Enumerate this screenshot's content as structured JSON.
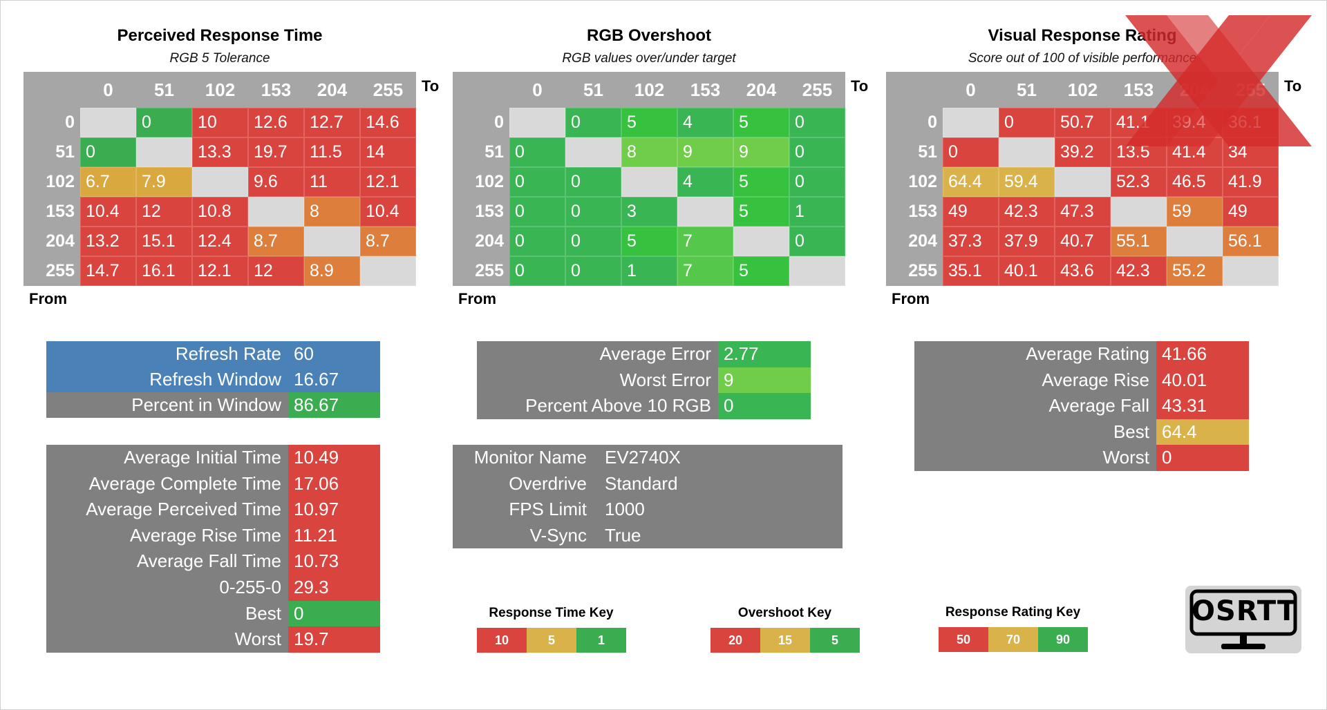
{
  "colors": {
    "red": "#d9443e",
    "orange": "#dd7e3c",
    "yellow": "#d9b24a",
    "green_dark": "#3aad51",
    "green_mid": "#44c452",
    "green_bright": "#36c23f",
    "green_light": "#6fcd4a",
    "gray_cell": "#d9d9d9",
    "panel_gray": "#808080",
    "refresh_blue": "#4a82b8",
    "grid_bg": "#a6a6a6"
  },
  "axes": {
    "to": "To",
    "from": "From"
  },
  "chart_data": [
    {
      "type": "heatmap",
      "title": "Perceived Response Time",
      "subtitle": "RGB 5 Tolerance",
      "columns": [
        "0",
        "51",
        "102",
        "153",
        "204",
        "255"
      ],
      "rows": [
        "0",
        "51",
        "102",
        "153",
        "204",
        "255"
      ],
      "values": [
        [
          "",
          "0",
          "10",
          "12.6",
          "12.7",
          "14.6"
        ],
        [
          "0",
          "",
          "13.3",
          "19.7",
          "11.5",
          "14"
        ],
        [
          "6.7",
          "7.9",
          "",
          "9.6",
          "11",
          "12.1"
        ],
        [
          "10.4",
          "12",
          "10.8",
          "",
          "8",
          "10.4"
        ],
        [
          "13.2",
          "15.1",
          "12.4",
          "8.7",
          "",
          "8.7"
        ],
        [
          "14.7",
          "16.1",
          "12.1",
          "12",
          "8.9",
          ""
        ]
      ],
      "colors": [
        [
          "#d9d9d9",
          "#3aad51",
          "#d9443e",
          "#d9443e",
          "#d9443e",
          "#d9443e"
        ],
        [
          "#3aad51",
          "#d9d9d9",
          "#d9443e",
          "#d9443e",
          "#d9443e",
          "#d9443e"
        ],
        [
          "#d9a83e",
          "#d9a83e",
          "#d9d9d9",
          "#d9443e",
          "#d9443e",
          "#d9443e"
        ],
        [
          "#d9443e",
          "#d9443e",
          "#d9443e",
          "#d9d9d9",
          "#dd7e3c",
          "#d9443e"
        ],
        [
          "#d9443e",
          "#d9443e",
          "#d9443e",
          "#dd7e3c",
          "#d9d9d9",
          "#dd7e3c"
        ],
        [
          "#d9443e",
          "#d9443e",
          "#d9443e",
          "#d9443e",
          "#dd7e3c",
          "#d9d9d9"
        ]
      ]
    },
    {
      "type": "heatmap",
      "title": "RGB Overshoot",
      "subtitle": "RGB values over/under target",
      "columns": [
        "0",
        "51",
        "102",
        "153",
        "204",
        "255"
      ],
      "rows": [
        "0",
        "51",
        "102",
        "153",
        "204",
        "255"
      ],
      "values": [
        [
          "",
          "0",
          "5",
          "4",
          "5",
          "0"
        ],
        [
          "0",
          "",
          "8",
          "9",
          "9",
          "0"
        ],
        [
          "0",
          "0",
          "",
          "4",
          "5",
          "0"
        ],
        [
          "0",
          "0",
          "3",
          "",
          "5",
          "1"
        ],
        [
          "0",
          "0",
          "5",
          "7",
          "",
          "0"
        ],
        [
          "0",
          "0",
          "1",
          "7",
          "5",
          ""
        ]
      ],
      "colors": [
        [
          "#d9d9d9",
          "#3ab553",
          "#36c23f",
          "#3ab553",
          "#36c23f",
          "#3ab553"
        ],
        [
          "#3ab553",
          "#d9d9d9",
          "#6fcd4a",
          "#6fcd4a",
          "#6fcd4a",
          "#3ab553"
        ],
        [
          "#3ab553",
          "#3ab553",
          "#d9d9d9",
          "#3ab553",
          "#36c23f",
          "#3ab553"
        ],
        [
          "#3ab553",
          "#3ab553",
          "#3ab553",
          "#d9d9d9",
          "#36c23f",
          "#3ab553"
        ],
        [
          "#3ab553",
          "#3ab553",
          "#36c23f",
          "#55c84b",
          "#d9d9d9",
          "#3ab553"
        ],
        [
          "#3ab553",
          "#3ab553",
          "#3ab553",
          "#55c84b",
          "#36c23f",
          "#d9d9d9"
        ]
      ]
    },
    {
      "type": "heatmap",
      "title": "Visual Response Rating",
      "subtitle": "Score out of 100 of visible performance",
      "columns": [
        "0",
        "51",
        "102",
        "153",
        "204",
        "255"
      ],
      "rows": [
        "0",
        "51",
        "102",
        "153",
        "204",
        "255"
      ],
      "values": [
        [
          "",
          "0",
          "50.7",
          "41.1",
          "39.4",
          "36.1"
        ],
        [
          "0",
          "",
          "39.2",
          "13.5",
          "41.4",
          "34"
        ],
        [
          "64.4",
          "59.4",
          "",
          "52.3",
          "46.5",
          "41.9"
        ],
        [
          "49",
          "42.3",
          "47.3",
          "",
          "59",
          "49"
        ],
        [
          "37.3",
          "37.9",
          "40.7",
          "55.1",
          "",
          "56.1"
        ],
        [
          "35.1",
          "40.1",
          "43.6",
          "42.3",
          "55.2",
          ""
        ]
      ],
      "colors": [
        [
          "#d9d9d9",
          "#d9443e",
          "#d9443e",
          "#d9443e",
          "#d9443e",
          "#d9443e"
        ],
        [
          "#d9443e",
          "#d9d9d9",
          "#d9443e",
          "#d9443e",
          "#d9443e",
          "#d9443e"
        ],
        [
          "#d9b24a",
          "#d9b24a",
          "#d9d9d9",
          "#d9443e",
          "#d9443e",
          "#d9443e"
        ],
        [
          "#d9443e",
          "#d9443e",
          "#d9443e",
          "#d9d9d9",
          "#dd7e3c",
          "#d9443e"
        ],
        [
          "#d9443e",
          "#d9443e",
          "#d9443e",
          "#dd7e3c",
          "#d9d9d9",
          "#dd7e3c"
        ],
        [
          "#d9443e",
          "#d9443e",
          "#d9443e",
          "#d9443e",
          "#dd7e3c",
          "#d9d9d9"
        ]
      ]
    }
  ],
  "refresh_panel": {
    "rows": [
      {
        "label": "Refresh Rate",
        "value": "60",
        "bg": "#4a82b8",
        "valbg": "#4a82b8"
      },
      {
        "label": "Refresh Window",
        "value": "16.67",
        "bg": "#4a82b8",
        "valbg": "#4a82b8"
      },
      {
        "label": "Percent in Window",
        "value": "86.67",
        "bg": "#808080",
        "valbg": "#3aad51"
      }
    ]
  },
  "time_panel": {
    "rows": [
      {
        "label": "Average Initial Time",
        "value": "10.49",
        "valbg": "#d9443e"
      },
      {
        "label": "Average Complete Time",
        "value": "17.06",
        "valbg": "#d9443e"
      },
      {
        "label": "Average Perceived Time",
        "value": "10.97",
        "valbg": "#d9443e"
      },
      {
        "label": "Average Rise Time",
        "value": "11.21",
        "valbg": "#d9443e"
      },
      {
        "label": "Average Fall Time",
        "value": "10.73",
        "valbg": "#d9443e"
      },
      {
        "label": "0-255-0",
        "value": "29.3",
        "valbg": "#d9443e"
      },
      {
        "label": "Best",
        "value": "0",
        "valbg": "#3aad51"
      },
      {
        "label": "Worst",
        "value": "19.7",
        "valbg": "#d9443e"
      }
    ]
  },
  "error_panel": {
    "rows": [
      {
        "label": "Average Error",
        "value": "2.77",
        "valbg": "#3ab553"
      },
      {
        "label": "Worst Error",
        "value": "9",
        "valbg": "#6fcd4a"
      },
      {
        "label": "Percent Above 10 RGB",
        "value": "0",
        "valbg": "#3ab553"
      }
    ]
  },
  "monitor_panel": {
    "rows": [
      {
        "label": "Monitor Name",
        "value": "EV2740X"
      },
      {
        "label": "Overdrive",
        "value": "Standard"
      },
      {
        "label": "FPS Limit",
        "value": "1000"
      },
      {
        "label": "V-Sync",
        "value": "True"
      }
    ]
  },
  "rating_panel": {
    "rows": [
      {
        "label": "Average Rating",
        "value": "41.66",
        "valbg": "#d9443e"
      },
      {
        "label": "Average Rise",
        "value": "40.01",
        "valbg": "#d9443e"
      },
      {
        "label": "Average Fall",
        "value": "43.31",
        "valbg": "#d9443e"
      },
      {
        "label": "Best",
        "value": "64.4",
        "valbg": "#d9b24a"
      },
      {
        "label": "Worst",
        "value": "0",
        "valbg": "#d9443e"
      }
    ]
  },
  "keys": [
    {
      "title": "Response Time Key",
      "items": [
        {
          "label": "10",
          "color": "#d9443e"
        },
        {
          "label": "5",
          "color": "#d9b24a"
        },
        {
          "label": "1",
          "color": "#3aad51"
        }
      ]
    },
    {
      "title": "Overshoot Key",
      "items": [
        {
          "label": "20",
          "color": "#d9443e"
        },
        {
          "label": "15",
          "color": "#d9b24a"
        },
        {
          "label": "5",
          "color": "#3aad51"
        }
      ]
    },
    {
      "title": "Response Rating Key",
      "items": [
        {
          "label": "50",
          "color": "#d9443e"
        },
        {
          "label": "70",
          "color": "#d9b24a"
        },
        {
          "label": "90",
          "color": "#3aad51"
        }
      ]
    }
  ],
  "logo": {
    "text": "OSRTT"
  }
}
